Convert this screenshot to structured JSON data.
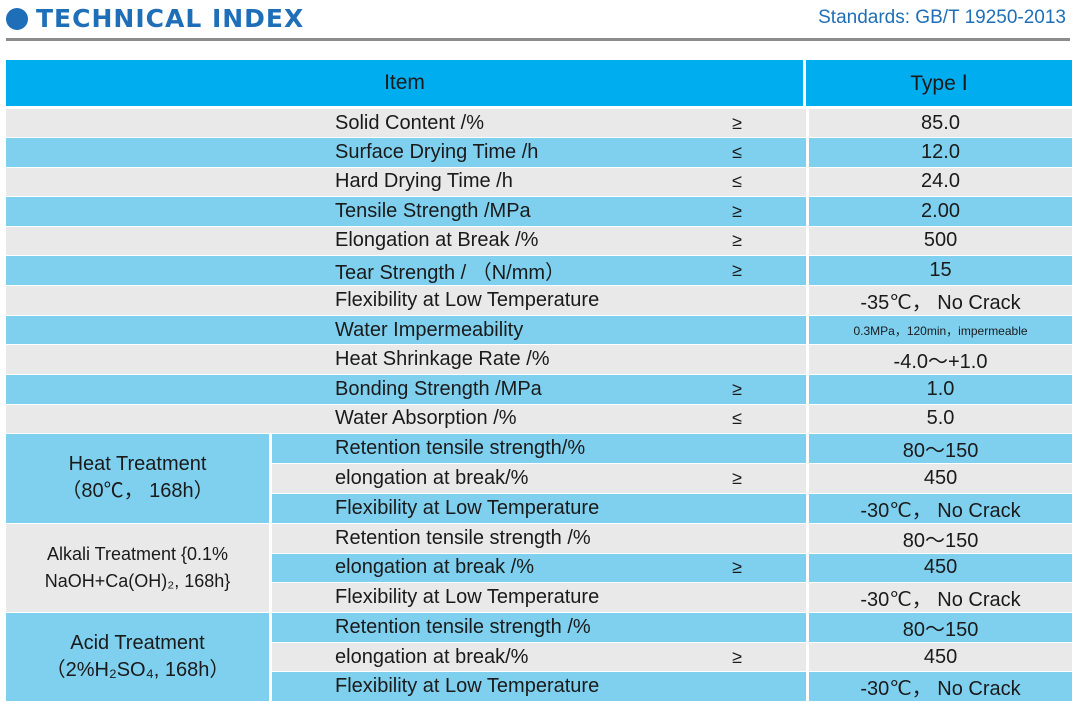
{
  "header": {
    "title": "TECHNICAL INDEX",
    "standards": "Standards: GB/T 19250-2013"
  },
  "table": {
    "col_item": "Item",
    "col_type": "Type Ⅰ",
    "rows": [
      {
        "item": "Solid Content /%",
        "sym": "≥",
        "value": "85.0"
      },
      {
        "item": "Surface Drying Time /h",
        "sym": "≤",
        "value": "12.0"
      },
      {
        "item": "Hard Drying Time /h",
        "sym": "≤",
        "value": "24.0"
      },
      {
        "item": "Tensile Strength /MPa",
        "sym": "≥",
        "value": "2.00"
      },
      {
        "item": "Elongation at Break /%",
        "sym": "≥",
        "value": "500"
      },
      {
        "item": "Tear Strength / （N/mm）",
        "sym": "≥",
        "value": "15"
      },
      {
        "item": "Flexibility at Low Temperature",
        "sym": "",
        "value": "-35℃， No Crack"
      },
      {
        "item": "Water Impermeability",
        "sym": "",
        "value": "0.3MPa，120min，impermeable"
      },
      {
        "item": "Heat Shrinkage Rate /%",
        "sym": "",
        "value": "-4.0～+1.0"
      },
      {
        "item": "Bonding Strength /MPa",
        "sym": "≥",
        "value": "1.0"
      },
      {
        "item": "Water Absorption /%",
        "sym": "≤",
        "value": "5.0"
      }
    ],
    "groups": [
      {
        "line1": "Heat Treatment",
        "line2": "（80℃， 168h）",
        "rows": [
          {
            "item": "Retention tensile strength/%",
            "sym": "",
            "value": "80～150"
          },
          {
            "item": "elongation at break/%",
            "sym": "≥",
            "value": "450"
          },
          {
            "item": "Flexibility at Low Temperature",
            "sym": "",
            "value": "-30℃， No Crack"
          }
        ]
      },
      {
        "line1": "Alkali Treatment {0.1%",
        "line2": "NaOH+Ca(OH)₂, 168h}",
        "rows": [
          {
            "item": "Retention tensile strength /%",
            "sym": "",
            "value": "80～150"
          },
          {
            "item": "elongation at break /%",
            "sym": "≥",
            "value": "450"
          },
          {
            "item": "Flexibility at Low Temperature",
            "sym": "",
            "value": "-30℃， No Crack"
          }
        ]
      },
      {
        "line1": "Acid Treatment",
        "line2": "（2%H₂SO₄, 168h）",
        "rows": [
          {
            "item": "Retention tensile strength /%",
            "sym": "",
            "value": "80～150"
          },
          {
            "item": "elongation at break/%",
            "sym": "≥",
            "value": "450"
          },
          {
            "item": "Flexibility at Low Temperature",
            "sym": "",
            "value": "-30℃， No Crack"
          }
        ]
      }
    ]
  },
  "colors": {
    "header_blue": "#00aeef",
    "row_blue": "#7fd0ef",
    "row_gray": "#e9e9e9",
    "title_blue": "#1e6fb8"
  }
}
